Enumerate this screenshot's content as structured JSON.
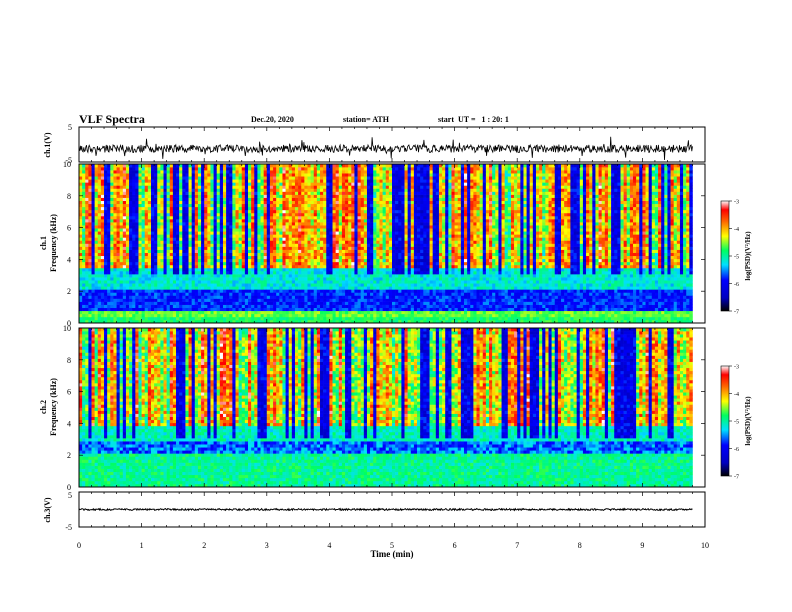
{
  "header": {
    "title": "VLF Spectra",
    "date": "Dec.20, 2020",
    "station": "station= ATH",
    "start": "start  UT =   1 : 20: 1"
  },
  "chart_data": [
    {
      "type": "line",
      "panel": "ch1-waveform",
      "ylabel": "ch.1(V)",
      "ylim": [
        -5,
        5
      ],
      "yticks": [
        "5",
        "-5"
      ],
      "xlim": [
        0,
        10
      ],
      "x_extent": [
        0,
        9.8
      ],
      "baseline": -1.2,
      "noise_amplitude": 1.1
    },
    {
      "type": "heatmap",
      "panel": "ch1-spectrogram",
      "ylabel": "ch.1\nFrequency (kHz)",
      "ylabel_lines": [
        "ch.1",
        "Frequency (kHz)"
      ],
      "ylim": [
        0,
        10
      ],
      "yticks": [
        "0",
        "2",
        "4",
        "6",
        "8",
        "10"
      ],
      "xlim": [
        0,
        10
      ],
      "x_extent": [
        0,
        9.8
      ],
      "colorbar": {
        "label": "log(PSD)(V²/Hz)",
        "range": [
          -7,
          -3
        ],
        "ticks": [
          "-3",
          "-4",
          "-5",
          "-6",
          "-7"
        ]
      }
    },
    {
      "type": "heatmap",
      "panel": "ch2-spectrogram",
      "ylabel_lines": [
        "ch.2",
        "Frequency (kHz)"
      ],
      "ylim": [
        0,
        10
      ],
      "yticks": [
        "0",
        "2",
        "4",
        "6",
        "8",
        "10"
      ],
      "xlim": [
        0,
        10
      ],
      "x_extent": [
        0,
        9.8
      ],
      "colorbar": {
        "label": "log(PSD)(V²/Hz)",
        "range": [
          -7,
          -3
        ],
        "ticks": [
          "-3",
          "-4",
          "-5",
          "-6",
          "-7"
        ]
      }
    },
    {
      "type": "line",
      "panel": "ch3-waveform",
      "ylabel": "ch.3(V)",
      "ylim": [
        -5,
        5
      ],
      "yticks": [
        "5",
        "-5"
      ],
      "xlim": [
        0,
        10
      ],
      "x_extent": [
        0,
        9.8
      ],
      "baseline": 0,
      "noise_amplitude": 0.25
    }
  ],
  "xaxis": {
    "label": "Time (min)",
    "ticks": [
      "0",
      "1",
      "2",
      "3",
      "4",
      "5",
      "6",
      "7",
      "8",
      "9",
      "10"
    ]
  },
  "colors": {
    "colormap": [
      "#000080",
      "#0000ff",
      "#00c8ff",
      "#00ff80",
      "#ffff00",
      "#ff8000",
      "#ff0000",
      "#ffffff"
    ]
  }
}
